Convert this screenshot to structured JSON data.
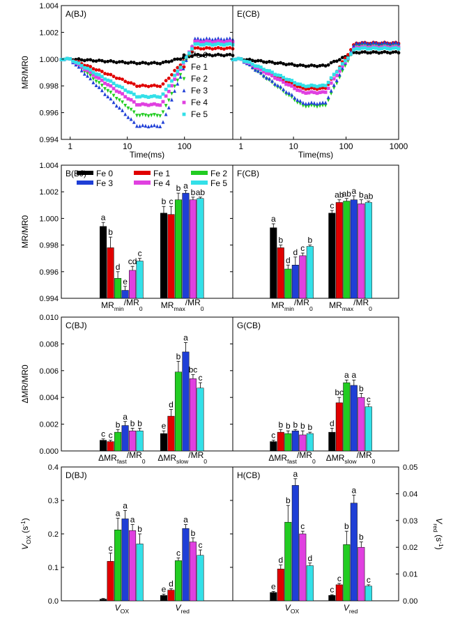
{
  "legend": {
    "series": [
      {
        "name": "Fe 0",
        "color": "#000000",
        "marker": "circle"
      },
      {
        "name": "Fe 1",
        "color": "#e00000",
        "marker": "circle"
      },
      {
        "name": "Fe 2",
        "color": "#22cc22",
        "marker": "triangle-down"
      },
      {
        "name": "Fe 3",
        "color": "#1f3fd6",
        "marker": "triangle-up"
      },
      {
        "name": "Fe 4",
        "color": "#e040e0",
        "marker": "square"
      },
      {
        "name": "Fe 5",
        "color": "#33e0e8",
        "marker": "square"
      }
    ]
  },
  "chart_data": [
    {
      "id": "A",
      "type": "scatter",
      "panel_label": "A(BJ)",
      "xlabel": "Time(ms)",
      "ylabel": "MR/MR0",
      "xscale": "log",
      "xlim": [
        0.7,
        700
      ],
      "ylim": [
        0.994,
        1.004
      ],
      "yticks": [
        "0.994",
        "0.996",
        "0.998",
        "1.000",
        "1.002",
        "1.004"
      ],
      "xticks": [
        "1",
        "10",
        "100"
      ],
      "legend_position": "inside-right",
      "curve_params": {
        "Fe 0": {
          "min": 0.9997,
          "end": 1.0003
        },
        "Fe 1": {
          "min": 0.998,
          "end": 1.0008
        },
        "Fe 2": {
          "min": 0.9958,
          "end": 1.0012
        },
        "Fe 3": {
          "min": 0.995,
          "end": 1.0015
        },
        "Fe 4": {
          "min": 0.9966,
          "end": 1.0013
        },
        "Fe 5": {
          "min": 0.9972,
          "end": 1.0011
        }
      }
    },
    {
      "id": "E",
      "type": "scatter",
      "panel_label": "E(CB)",
      "xlabel": "Time(ms)",
      "xscale": "log",
      "xlim": [
        0.7,
        1000
      ],
      "ylim": [
        0.994,
        1.004
      ],
      "xticks": [
        "1",
        "10",
        "100",
        "1000"
      ],
      "curve_params": {
        "Fe 0": {
          "min": 0.9995,
          "end": 1.0005
        },
        "Fe 1": {
          "min": 0.9978,
          "end": 1.0012
        },
        "Fe 2": {
          "min": 0.9965,
          "end": 1.001
        },
        "Fe 3": {
          "min": 0.9967,
          "end": 1.0012
        },
        "Fe 4": {
          "min": 0.9975,
          "end": 1.0009
        },
        "Fe 5": {
          "min": 0.998,
          "end": 1.0008
        }
      }
    },
    {
      "id": "B",
      "type": "bar",
      "panel_label": "B(BJ)",
      "ylabel": "MR/MR0",
      "ylim": [
        0.994,
        1.004
      ],
      "yticks": [
        "0.994",
        "0.996",
        "0.998",
        "1.000",
        "1.002",
        "1.004"
      ],
      "groups": [
        {
          "label": "MRmin/MR0",
          "main": "MR",
          "sub": "min",
          "tail": "/MR",
          "tail_sub": "0",
          "values": [
            0.9994,
            0.9978,
            0.9955,
            0.9946,
            0.9961,
            0.9968
          ],
          "errors": [
            0.0003,
            0.0008,
            0.0005,
            0.0003,
            0.0003,
            0.0002
          ],
          "letters": [
            "a",
            "b",
            "d",
            "e",
            "cd",
            "c"
          ]
        },
        {
          "label": "MRmax/MR0",
          "main": "MR",
          "sub": "max",
          "tail": "/MR",
          "tail_sub": "0",
          "values": [
            1.0004,
            1.0003,
            1.0014,
            1.0019,
            1.0014,
            1.0015
          ],
          "errors": [
            0.0005,
            0.0006,
            0.0005,
            0.0002,
            0.0002,
            0.0001
          ],
          "letters": [
            "b",
            "c",
            "b",
            "a",
            "b",
            "ab"
          ]
        }
      ],
      "legend_position": "top-left"
    },
    {
      "id": "F",
      "type": "bar",
      "panel_label": "F(CB)",
      "ylim": [
        0.994,
        1.004
      ],
      "groups": [
        {
          "label": "MRmin/MR0",
          "main": "MR",
          "sub": "min",
          "tail": "/MR",
          "tail_sub": "0",
          "values": [
            0.9993,
            0.9978,
            0.9962,
            0.9965,
            0.9972,
            0.9979
          ],
          "errors": [
            0.0003,
            0.0002,
            0.0003,
            0.0006,
            0.0002,
            0.0001
          ],
          "letters": [
            "a",
            "b",
            "d",
            "d",
            "c",
            "b"
          ]
        },
        {
          "label": "MRmax/MR0",
          "main": "MR",
          "sub": "max",
          "tail": "/MR",
          "tail_sub": "0",
          "values": [
            1.0004,
            1.0012,
            1.0013,
            1.0014,
            1.0011,
            1.0012
          ],
          "errors": [
            0.0002,
            0.0002,
            0.0002,
            0.0003,
            0.0003,
            0.0001
          ],
          "letters": [
            "c",
            "ab",
            "ab",
            "a",
            "b",
            "ab"
          ]
        }
      ]
    },
    {
      "id": "C",
      "type": "bar",
      "panel_label": "C(BJ)",
      "ylabel": "ΔMR/MR0",
      "ylim": [
        0,
        0.01
      ],
      "yticks": [
        "0.000",
        "0.002",
        "0.004",
        "0.006",
        "0.008",
        "0.010"
      ],
      "groups": [
        {
          "label": "ΔMRfast/MR0",
          "main": "ΔMR",
          "sub": "fast",
          "tail": "/MR",
          "tail_sub": "0",
          "values": [
            0.0008,
            0.0007,
            0.0014,
            0.0019,
            0.0015,
            0.0015
          ],
          "errors": [
            0.0001,
            0.0001,
            0.0002,
            0.0003,
            0.0002,
            0.0002
          ],
          "letters": [
            "c",
            "c",
            "b",
            "a",
            "b",
            "b"
          ]
        },
        {
          "label": "ΔMRslow/MR0",
          "main": "ΔMR",
          "sub": "slow",
          "tail": "/MR",
          "tail_sub": "0",
          "values": [
            0.0013,
            0.0026,
            0.0059,
            0.0074,
            0.0054,
            0.0047
          ],
          "errors": [
            0.0002,
            0.0005,
            0.0008,
            0.0007,
            0.0003,
            0.0004
          ],
          "letters": [
            "e",
            "d",
            "b",
            "a",
            "bc",
            "c"
          ]
        }
      ]
    },
    {
      "id": "G",
      "type": "bar",
      "panel_label": "G(CB)",
      "ylim": [
        0,
        0.01
      ],
      "groups": [
        {
          "label": "ΔMRfast/MR0",
          "main": "ΔMR",
          "sub": "fast",
          "tail": "/MR",
          "tail_sub": "0",
          "values": [
            0.0007,
            0.0014,
            0.0013,
            0.0015,
            0.0012,
            0.0013
          ],
          "errors": [
            0.0001,
            0.0002,
            0.0002,
            0.0001,
            0.0003,
            0.0001
          ],
          "letters": [
            "c",
            "b",
            "b",
            "b",
            "b",
            "b"
          ]
        },
        {
          "label": "ΔMRslow/MR0",
          "main": "ΔMR",
          "sub": "slow",
          "tail": "/MR",
          "tail_sub": "0",
          "values": [
            0.0014,
            0.0036,
            0.0051,
            0.0049,
            0.004,
            0.0033
          ],
          "errors": [
            0.0003,
            0.0004,
            0.0002,
            0.0004,
            0.0003,
            0.0002
          ],
          "letters": [
            "d",
            "bc",
            "a",
            "a",
            "b",
            "c"
          ]
        }
      ]
    },
    {
      "id": "D",
      "type": "bar",
      "panel_label": "D(BJ)",
      "ylim": [
        0,
        0.4
      ],
      "yticks": [
        "0.0",
        "0.1",
        "0.2",
        "0.3",
        "0.4"
      ],
      "ylabel_main": "V",
      "ylabel_sub": "OX",
      "ylabel_tail": " (s",
      "ylabel_sup": "-1",
      "ylabel_end": ")",
      "groups": [
        {
          "label": "VOX",
          "main": "V",
          "sub": "OX",
          "tail": "",
          "tail_sub": "",
          "scale": "left",
          "values": [
            0.005,
            0.118,
            0.212,
            0.245,
            0.21,
            0.17
          ],
          "errors": [
            0.002,
            0.025,
            0.035,
            0.025,
            0.018,
            0.03
          ],
          "letters": [
            "",
            "c",
            "a",
            "a",
            "a",
            "b"
          ]
        },
        {
          "label": "Vred",
          "main": "V",
          "sub": "red",
          "tail": "",
          "tail_sub": "",
          "scale": "right",
          "values": [
            0.002,
            0.004,
            0.015,
            0.027,
            0.022,
            0.017
          ],
          "errors": [
            0.0005,
            0.0005,
            0.001,
            0.0015,
            0.0015,
            0.002
          ],
          "letters": [
            "e",
            "d",
            "c",
            "a",
            "b",
            "c"
          ]
        }
      ],
      "right_axis": {
        "ylim": [
          0,
          0.05
        ]
      }
    },
    {
      "id": "H",
      "type": "bar",
      "panel_label": "H(CB)",
      "ylim": [
        0,
        0.4
      ],
      "right_axis": {
        "ylim": [
          0,
          0.05
        ],
        "yticks": [
          "0.00",
          "0.01",
          "0.02",
          "0.03",
          "0.04",
          "0.05"
        ],
        "ylabel_main": "V",
        "ylabel_sub": "red",
        "ylabel_tail": " (s",
        "ylabel_sup": "-1",
        "ylabel_end": ")"
      },
      "groups": [
        {
          "label": "VOX",
          "main": "V",
          "sub": "OX",
          "tail": "",
          "tail_sub": "",
          "scale": "left",
          "values": [
            0.025,
            0.095,
            0.235,
            0.345,
            0.2,
            0.105
          ],
          "errors": [
            0.003,
            0.012,
            0.05,
            0.02,
            0.008,
            0.008
          ],
          "letters": [
            "e",
            "d",
            "b",
            "a",
            "c",
            "d"
          ]
        },
        {
          "label": "Vred",
          "main": "V",
          "sub": "red",
          "tail": "",
          "tail_sub": "",
          "scale": "right",
          "values": [
            0.002,
            0.006,
            0.021,
            0.0365,
            0.02,
            0.0055
          ],
          "errors": [
            0.0003,
            0.0005,
            0.005,
            0.003,
            0.002,
            0.0005
          ],
          "letters": [
            "c",
            "c",
            "b",
            "a",
            "b",
            "c"
          ]
        }
      ]
    }
  ]
}
